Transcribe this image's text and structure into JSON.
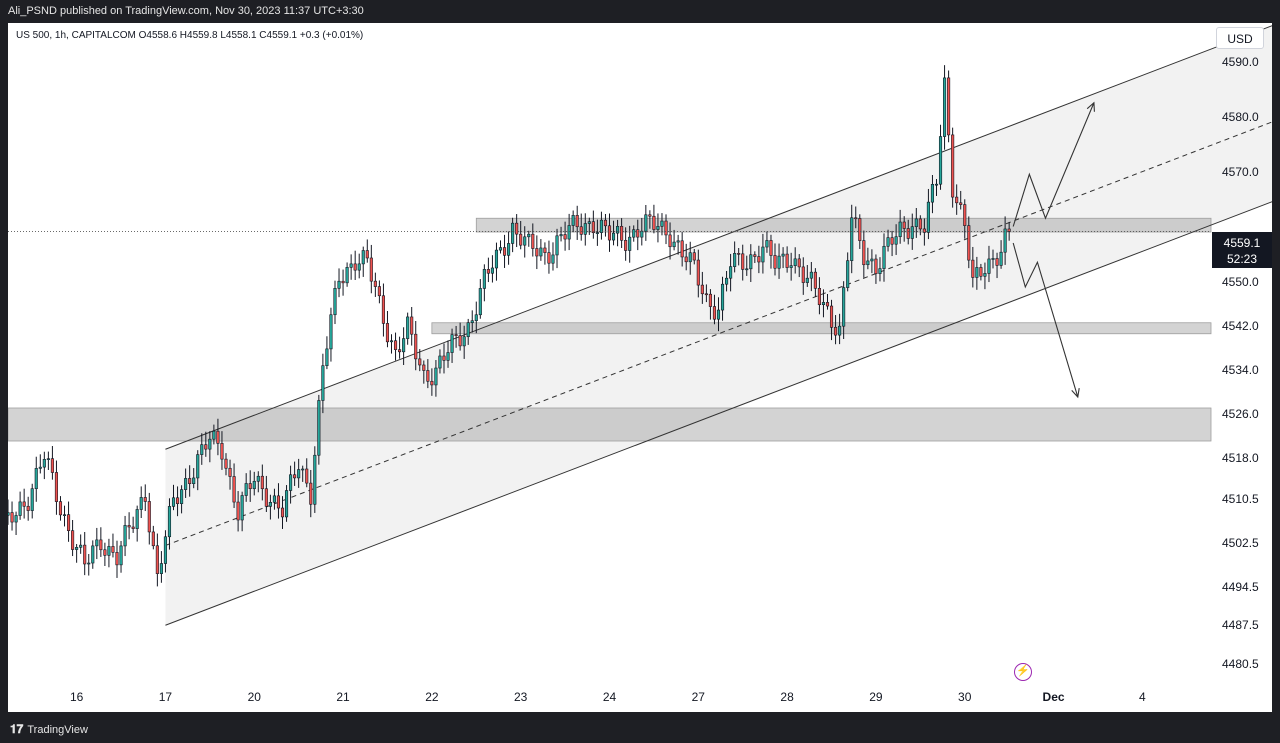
{
  "header": {
    "publisher": "Ali_PSND published on TradingView.com, Nov 30, 2023 11:37 UTC+3:30"
  },
  "legend": {
    "text": "US 500, 1h, CAPITALCOM  O4558.6  H4559.8  L4558.1  C4559.1  +0.3  (+0.01%)"
  },
  "currency": "USD",
  "footer": {
    "brand": "TradingView"
  },
  "chart_data": {
    "type": "candlestick",
    "symbol": "US 500",
    "interval": "1h",
    "source": "CAPITALCOM",
    "ohlc": {
      "open": 4558.6,
      "high": 4559.8,
      "low": 4558.1,
      "close": 4559.1,
      "change": 0.3,
      "change_pct": "(+0.01%)"
    },
    "last_price": {
      "price": "4559.1",
      "countdown": "52:23",
      "value": 4559.1
    },
    "y_ticks": [
      4590.0,
      4580.0,
      4570.0,
      4550.0,
      4542.0,
      4534.0,
      4526.0,
      4518.0,
      4510.5,
      4502.5,
      4494.5,
      4487.5,
      4480.5
    ],
    "y_tick_labels": [
      "4590.0",
      "4580.0",
      "4570.0",
      "4550.0",
      "4542.0",
      "4534.0",
      "4526.0",
      "4518.0",
      "4510.5",
      "4502.5",
      "4494.5",
      "4487.5",
      "4480.5"
    ],
    "x_ticks": [
      {
        "label": "16",
        "i": 0
      },
      {
        "label": "17",
        "i": 22
      },
      {
        "label": "20",
        "i": 44
      },
      {
        "label": "21",
        "i": 66
      },
      {
        "label": "22",
        "i": 88
      },
      {
        "label": "23",
        "i": 110
      },
      {
        "label": "24",
        "i": 132
      },
      {
        "label": "27",
        "i": 154
      },
      {
        "label": "28",
        "i": 176
      },
      {
        "label": "29",
        "i": 198
      },
      {
        "label": "30",
        "i": 220
      },
      {
        "label": "Dec",
        "i": 242
      },
      {
        "label": "4",
        "i": 264
      }
    ],
    "x_index_range": [
      -17,
      281
    ],
    "ylim": [
      4477,
      4597
    ],
    "price_colors": {
      "up": "#26a69a",
      "down": "#ef5350"
    },
    "key_close_points": [
      {
        "i": -17,
        "c": 4506
      },
      {
        "i": -12,
        "c": 4511
      },
      {
        "i": -8,
        "c": 4518
      },
      {
        "i": -4,
        "c": 4509
      },
      {
        "i": 2,
        "c": 4498
      },
      {
        "i": 6,
        "c": 4503
      },
      {
        "i": 10,
        "c": 4500
      },
      {
        "i": 14,
        "c": 4506
      },
      {
        "i": 17,
        "c": 4512
      },
      {
        "i": 20,
        "c": 4496
      },
      {
        "i": 24,
        "c": 4510
      },
      {
        "i": 28,
        "c": 4515
      },
      {
        "i": 33,
        "c": 4521
      },
      {
        "i": 36,
        "c": 4520
      },
      {
        "i": 40,
        "c": 4508
      },
      {
        "i": 44,
        "c": 4514
      },
      {
        "i": 48,
        "c": 4511
      },
      {
        "i": 51,
        "c": 4508
      },
      {
        "i": 55,
        "c": 4517
      },
      {
        "i": 58,
        "c": 4512
      },
      {
        "i": 61,
        "c": 4534
      },
      {
        "i": 65,
        "c": 4551
      },
      {
        "i": 69,
        "c": 4554
      },
      {
        "i": 72,
        "c": 4553
      },
      {
        "i": 75,
        "c": 4546
      },
      {
        "i": 79,
        "c": 4537
      },
      {
        "i": 82,
        "c": 4541
      },
      {
        "i": 86,
        "c": 4533
      },
      {
        "i": 89,
        "c": 4534
      },
      {
        "i": 93,
        "c": 4538
      },
      {
        "i": 97,
        "c": 4542
      },
      {
        "i": 101,
        "c": 4550
      },
      {
        "i": 104,
        "c": 4554
      },
      {
        "i": 108,
        "c": 4560
      },
      {
        "i": 112,
        "c": 4556
      },
      {
        "i": 116,
        "c": 4555
      },
      {
        "i": 120,
        "c": 4558
      },
      {
        "i": 124,
        "c": 4560
      },
      {
        "i": 128,
        "c": 4561
      },
      {
        "i": 132,
        "c": 4558
      },
      {
        "i": 136,
        "c": 4558
      },
      {
        "i": 140,
        "c": 4560
      },
      {
        "i": 144,
        "c": 4560
      },
      {
        "i": 147,
        "c": 4559
      },
      {
        "i": 150,
        "c": 4555
      },
      {
        "i": 153,
        "c": 4552
      },
      {
        "i": 156,
        "c": 4547
      },
      {
        "i": 159,
        "c": 4545
      },
      {
        "i": 162,
        "c": 4553
      },
      {
        "i": 166,
        "c": 4554
      },
      {
        "i": 170,
        "c": 4556
      },
      {
        "i": 173,
        "c": 4553
      },
      {
        "i": 177,
        "c": 4555
      },
      {
        "i": 180,
        "c": 4551
      },
      {
        "i": 183,
        "c": 4548
      },
      {
        "i": 186,
        "c": 4545
      },
      {
        "i": 189,
        "c": 4541
      },
      {
        "i": 192,
        "c": 4561
      },
      {
        "i": 195,
        "c": 4555
      },
      {
        "i": 198,
        "c": 4553
      },
      {
        "i": 201,
        "c": 4556
      },
      {
        "i": 204,
        "c": 4559
      },
      {
        "i": 207,
        "c": 4561
      },
      {
        "i": 210,
        "c": 4560
      },
      {
        "i": 213,
        "c": 4568
      },
      {
        "i": 215,
        "c": 4586
      },
      {
        "i": 217,
        "c": 4568
      },
      {
        "i": 220,
        "c": 4560
      },
      {
        "i": 222,
        "c": 4549
      },
      {
        "i": 225,
        "c": 4553
      },
      {
        "i": 229,
        "c": 4556
      },
      {
        "i": 231,
        "c": 4559.1
      }
    ],
    "channel": {
      "x_start": 22,
      "x_end": 305,
      "lower_start": 4487.5,
      "lower_end": 4567,
      "width": 32,
      "mid_offset": 14.5,
      "mid_start_x": 22,
      "mid_end_x": 320
    },
    "zones": [
      {
        "x_start": 99,
        "y_top": 4561.5,
        "y_bottom": 4559,
        "extend": true
      },
      {
        "x_start": 88,
        "y_top": 4542.5,
        "y_bottom": 4540.5,
        "extend": true
      },
      {
        "x_start": -17,
        "y_top": 4527,
        "y_bottom": 4521,
        "extend": true
      }
    ],
    "projections": [
      {
        "points": [
          [
            232,
            4560
          ],
          [
            236,
            4569.5
          ],
          [
            240,
            4561.5
          ],
          [
            252,
            4582.5
          ]
        ]
      },
      {
        "points": [
          [
            232,
            4557
          ],
          [
            235,
            4549
          ],
          [
            238,
            4553.5
          ],
          [
            248,
            4529
          ]
        ]
      }
    ]
  }
}
